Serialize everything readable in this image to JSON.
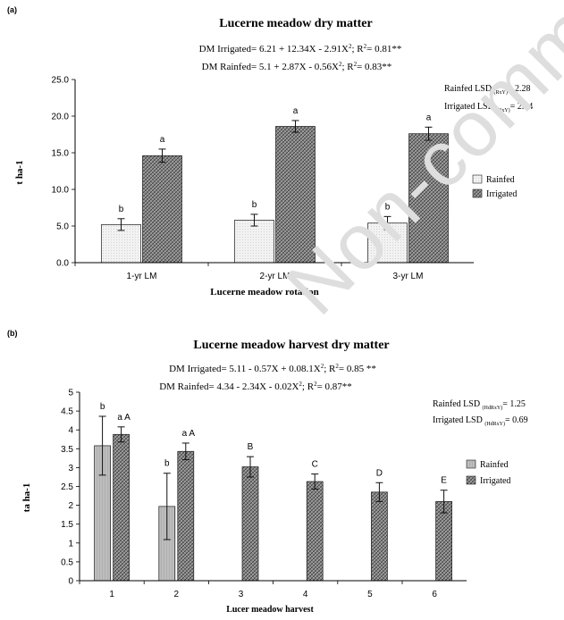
{
  "watermark": "Non-comm",
  "chart_data": [
    {
      "type": "bar",
      "panel_label": "(a)",
      "title": "Lucerne meadow dry matter",
      "equations": [
        {
          "lead": "DM Irrigated= 6.21 + 12.34X - 2.91X",
          "sup": "2",
          "mid": "; R",
          "sup2": "2",
          "tail": "= 0.81**"
        },
        {
          "lead": "DM Rainfed= 5.1 + 2.87X - 0.56X",
          "sup": "2",
          "mid": "; R",
          "sup2": "2",
          "tail": "= 0.83**"
        }
      ],
      "lsd": [
        {
          "lead": "Rainfed LSD ",
          "sub": "(RxY)",
          "tail": "= 2.28"
        },
        {
          "lead": "Irrigated LSD ",
          "sub": "(RxY)",
          "tail": "= 2.14"
        }
      ],
      "xlabel": "Lucerne meadow rotation",
      "ylabel": "t ha-1",
      "ylim": [
        0,
        25
      ],
      "yticks": [
        "0.0",
        "5.0",
        "10.0",
        "15.0",
        "20.0",
        "25.0"
      ],
      "categories": [
        "1-yr LM",
        "2-yr LM",
        "3-yr LM"
      ],
      "series": [
        {
          "name": "Rainfed",
          "values": [
            5.2,
            5.8,
            5.4
          ],
          "errors": [
            0.8,
            0.8,
            0.9
          ],
          "labels": [
            "b",
            "b",
            "b"
          ],
          "color": "#eeeeee"
        },
        {
          "name": "Irrigated",
          "values": [
            14.6,
            18.6,
            17.6
          ],
          "errors": [
            0.9,
            0.8,
            0.9
          ],
          "labels": [
            "a",
            "a",
            "a"
          ],
          "color": "#8a8a8a"
        }
      ],
      "legend_position": "right"
    },
    {
      "type": "bar",
      "panel_label": "(b)",
      "title": "Lucerne meadow harvest dry matter",
      "equations": [
        {
          "lead": "DM Irrigated= 5.11 - 0.57X + 0.08.1X",
          "sup": "2",
          "mid": "; R",
          "sup2": "2",
          "tail": "= 0.85 **"
        },
        {
          "lead": "DM Rainfed= 4.34 - 2.34X - 0.02X",
          "sup": "2",
          "mid": "; R",
          "sup2": "2",
          "tail": "= 0.87**"
        }
      ],
      "lsd": [
        {
          "lead": "Rainfed LSD ",
          "sub": "(HdRxY)",
          "tail": "= 1.25"
        },
        {
          "lead": "Irrigated LSD ",
          "sub": "(HdRxY)",
          "tail": "= 0.69"
        }
      ],
      "xlabel": "Lucer meadow harvest",
      "ylabel": "ta ha-1",
      "ylim": [
        0,
        5
      ],
      "yticks": [
        "0",
        "0.5",
        "1",
        "1.5",
        "2",
        "2.5",
        "3",
        "3.5",
        "4",
        "4.5",
        "5"
      ],
      "categories": [
        "1",
        "2",
        "3",
        "4",
        "5",
        "6"
      ],
      "series": [
        {
          "name": "Rainfed",
          "values": [
            3.58,
            1.97,
            null,
            null,
            null,
            null
          ],
          "errors": [
            0.78,
            0.88,
            null,
            null,
            null,
            null
          ],
          "labels": [
            "b",
            "b",
            "",
            "",
            "",
            ""
          ],
          "color": "#b3b3b3"
        },
        {
          "name": "Irrigated",
          "values": [
            3.88,
            3.43,
            3.02,
            2.63,
            2.35,
            2.1
          ],
          "errors": [
            0.2,
            0.22,
            0.27,
            0.2,
            0.25,
            0.3
          ],
          "labels": [
            "a A",
            "a A",
            "B",
            "C",
            "D",
            "E"
          ],
          "color": "#8a8a8a"
        }
      ],
      "legend_position": "right"
    }
  ]
}
